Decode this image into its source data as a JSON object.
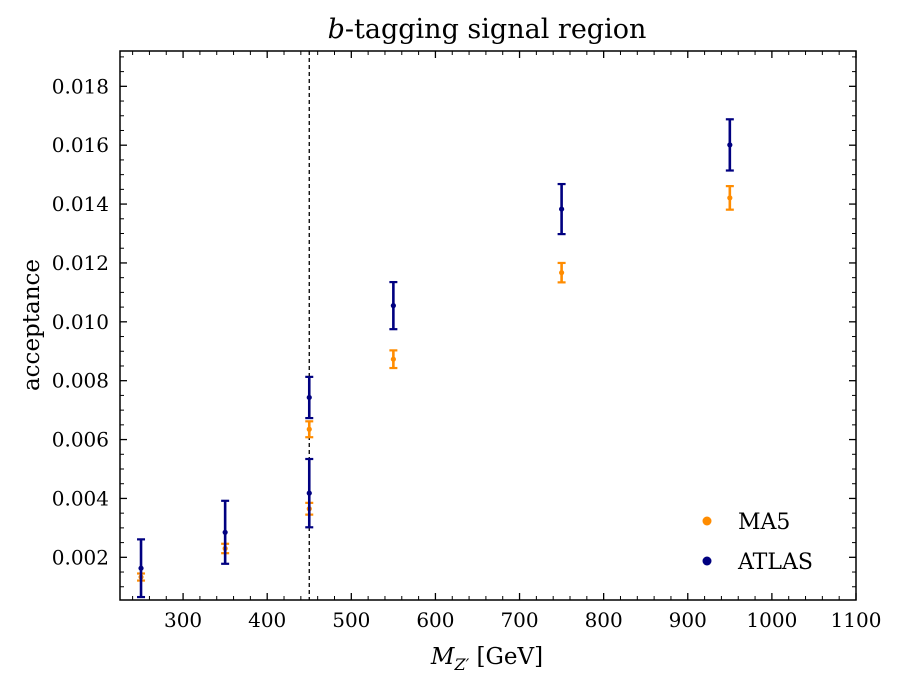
{
  "chart_data": {
    "type": "scatter",
    "title": "b-tagging signal region",
    "title_italic_part": "b",
    "title_rest": "-tagging signal region",
    "xlabel": "M_Z' [GeV]",
    "xlabel_parts": {
      "symbol": "M",
      "subscript": "Z′",
      "unit": " [GeV]"
    },
    "ylabel": "acceptance",
    "xlim": [
      225,
      1100
    ],
    "ylim": [
      0.00055,
      0.0192
    ],
    "xticks": [
      300,
      400,
      500,
      600,
      700,
      800,
      900,
      1000,
      1100
    ],
    "xtick_labels": [
      "300",
      "400",
      "500",
      "600",
      "700",
      "800",
      "900",
      "1000",
      "1100"
    ],
    "yticks": [
      0.002,
      0.004,
      0.006,
      0.008,
      0.01,
      0.012,
      0.014,
      0.016,
      0.018
    ],
    "ytick_labels": [
      "0.002",
      "0.004",
      "0.006",
      "0.008",
      "0.010",
      "0.012",
      "0.014",
      "0.016",
      "0.018"
    ],
    "vline_x": 450,
    "legend_position": "bottom-right",
    "series": [
      {
        "name": "MA5",
        "color": "#ff8c00",
        "points": [
          {
            "x": 250,
            "y": 0.00133,
            "err": 0.00012
          },
          {
            "x": 350,
            "y": 0.0023,
            "err": 0.00016
          },
          {
            "x": 450,
            "y": 0.00365,
            "err": 0.0002
          },
          {
            "x": 450,
            "y": 0.00635,
            "err": 0.00027
          },
          {
            "x": 550,
            "y": 0.00873,
            "err": 0.0003
          },
          {
            "x": 750,
            "y": 0.01167,
            "err": 0.00033
          },
          {
            "x": 950,
            "y": 0.01421,
            "err": 0.0004
          }
        ]
      },
      {
        "name": "ATLAS",
        "color": "#000080",
        "points": [
          {
            "x": 250,
            "y": 0.00163,
            "err": 0.00098
          },
          {
            "x": 350,
            "y": 0.00285,
            "err": 0.00107
          },
          {
            "x": 450,
            "y": 0.00418,
            "err": 0.00116
          },
          {
            "x": 450,
            "y": 0.00743,
            "err": 0.0007
          },
          {
            "x": 550,
            "y": 0.01055,
            "err": 0.0008
          },
          {
            "x": 750,
            "y": 0.01383,
            "err": 0.00085
          },
          {
            "x": 950,
            "y": 0.01601,
            "err": 0.00087
          }
        ]
      }
    ]
  }
}
